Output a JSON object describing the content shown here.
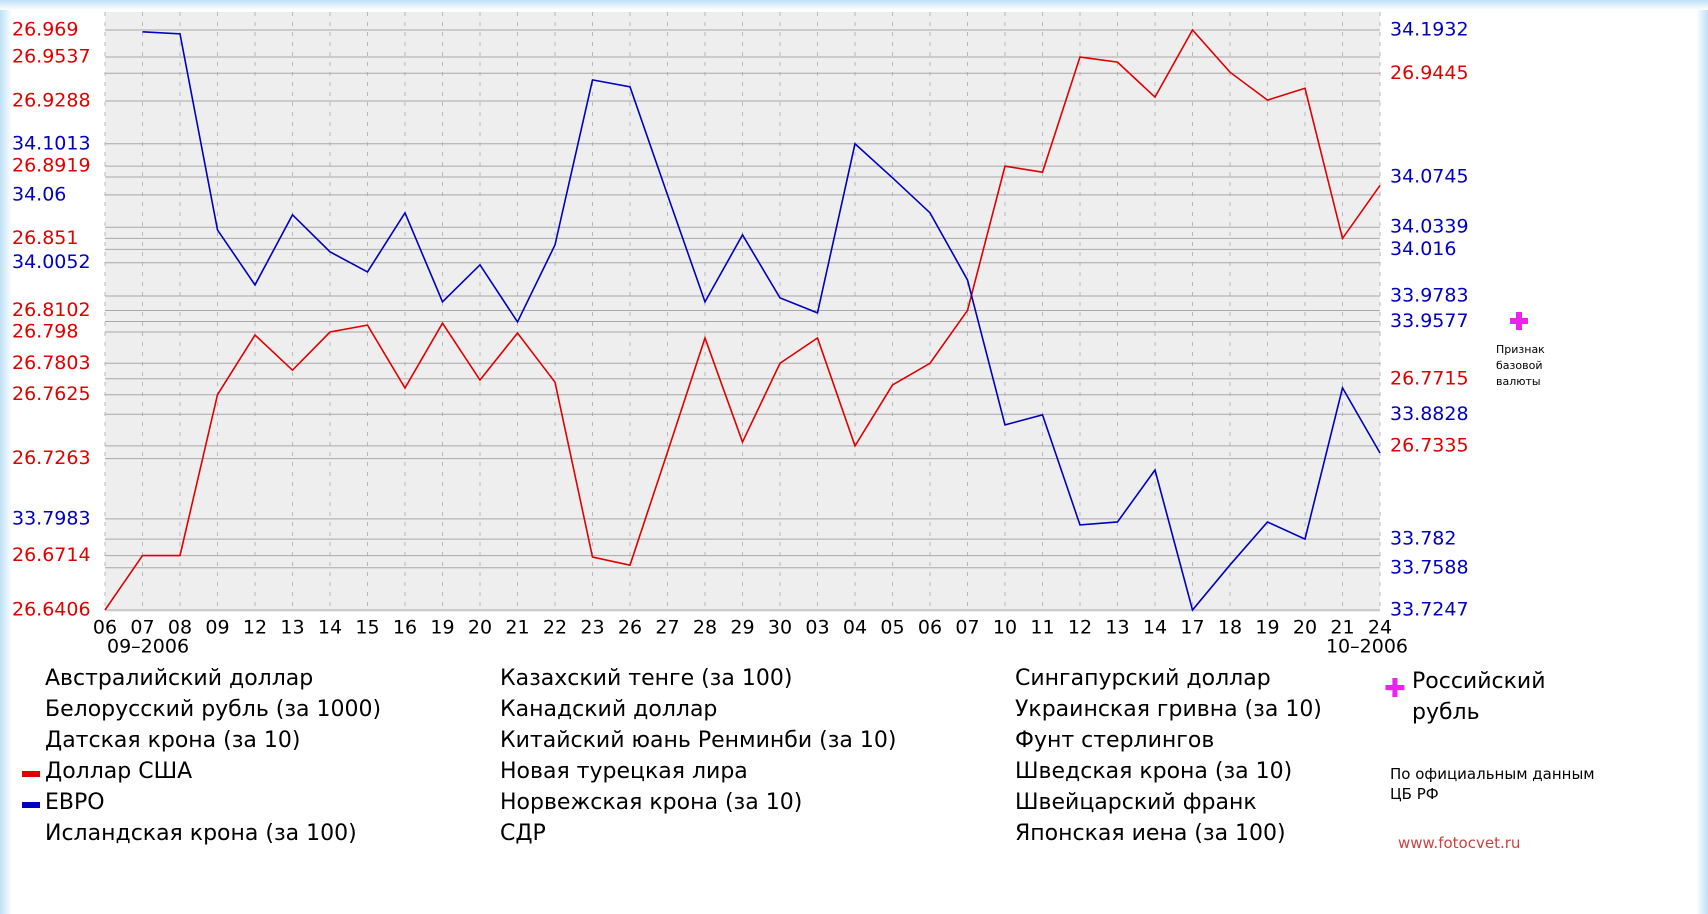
{
  "chart_data": {
    "type": "line",
    "categories": [
      "06",
      "07",
      "08",
      "09",
      "12",
      "13",
      "14",
      "15",
      "16",
      "19",
      "20",
      "21",
      "22",
      "23",
      "26",
      "27",
      "28",
      "29",
      "30",
      "03",
      "04",
      "05",
      "06",
      "07",
      "10",
      "11",
      "12",
      "13",
      "14",
      "17",
      "18",
      "19",
      "20",
      "21",
      "24"
    ],
    "period_labels": [
      "09–2006",
      "10–2006"
    ],
    "ylim": [
      26.6406,
      26.969
    ],
    "y2lim": [
      33.7247,
      34.1932
    ],
    "yticks_left": [
      26.969,
      26.9537,
      26.9288,
      26.8919,
      26.851,
      26.8102,
      26.798,
      26.7803,
      26.7625,
      26.7263,
      26.6714,
      26.6406
    ],
    "yticks_right": [
      26.9445,
      26.7715,
      26.7335
    ],
    "y2ticks_left": [
      34.1013,
      34.06,
      34.0052,
      33.7983
    ],
    "y2ticks_right": [
      34.1932,
      34.0745,
      34.0339,
      34.016,
      33.9783,
      33.9577,
      33.8828,
      33.782,
      33.7588,
      33.7247
    ],
    "grid": true,
    "series": [
      {
        "name": "Доллар США",
        "color": "#e00000",
        "values": [
          26.6406,
          26.6714,
          26.6714,
          26.7625,
          26.7963,
          26.7764,
          26.798,
          26.8019,
          26.7663,
          26.803,
          26.7708,
          26.7974,
          26.7696,
          26.6706,
          26.666,
          26.73,
          26.7946,
          26.7357,
          26.7803,
          26.7946,
          26.7335,
          26.768,
          26.7803,
          26.8102,
          26.8919,
          26.8885,
          26.9537,
          26.9508,
          26.931,
          26.969,
          26.9451,
          26.9293,
          26.936,
          26.851,
          26.881
        ]
      },
      {
        "name": "ЕВРО",
        "color": "#0000c0",
        "axis": "y2",
        "values": [
          null,
          34.1917,
          34.1901,
          34.0317,
          33.9873,
          34.0439,
          34.014,
          33.9978,
          34.0455,
          33.9736,
          34.0035,
          33.9574,
          34.0196,
          34.1529,
          34.1473,
          34.06,
          33.9736,
          34.0277,
          33.9768,
          33.9647,
          34.1013,
          34.0738,
          34.0455,
          33.9913,
          33.8742,
          33.8823,
          33.7934,
          33.7958,
          33.8378,
          33.7247,
          33.7611,
          33.7958,
          33.782,
          33.9041,
          33.8515
        ]
      }
    ],
    "legend_columns": [
      [
        "Австралийский доллар",
        "Белорусский рубль (за 1000)",
        "Датская крона (за 10)",
        "Исландская крона (за 100)"
      ],
      [
        "Казахский тенге (за 100)",
        "Канадский доллар",
        "Китайский юань Ренминби (за 10)",
        "Новая турецкая лира",
        "Норвежская крона (за 10)",
        "СДР"
      ],
      [
        "Сингапурский доллар",
        "Украинская гривна (за 10)",
        "Фунт стерлингов",
        "Шведская крона (за 10)",
        "Швейцарский франк",
        "Японская иена (за 100)"
      ]
    ],
    "base_currency": "Российский рубль",
    "base_note": "Признак базовой валюты",
    "source": "По официальным данным ЦБ РФ",
    "site": "www.fotocvet.ru"
  }
}
